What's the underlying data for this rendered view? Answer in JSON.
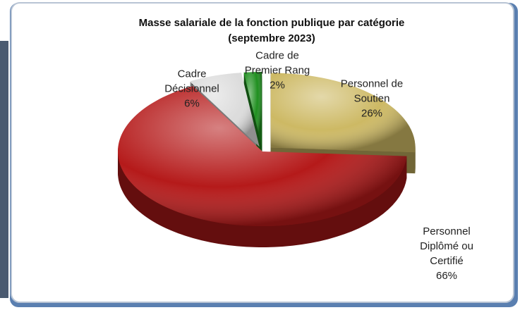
{
  "chart_data": {
    "type": "pie",
    "title": "Masse salariale de la fonction publique par catégorie",
    "subtitle": "(septembre 2023)",
    "categories": [
      "Personnel de Soutien",
      "Personnel Diplômé ou Certifié",
      "Cadre Décisionnel",
      "Cadre de Premier Rang"
    ],
    "values": [
      26,
      66,
      6,
      2
    ],
    "value_labels": [
      "26%",
      "66%",
      "6%",
      "2%"
    ],
    "colors": [
      "#cdb964",
      "#b51a1a",
      "#dcdcdc",
      "#1f8f1f"
    ]
  }
}
